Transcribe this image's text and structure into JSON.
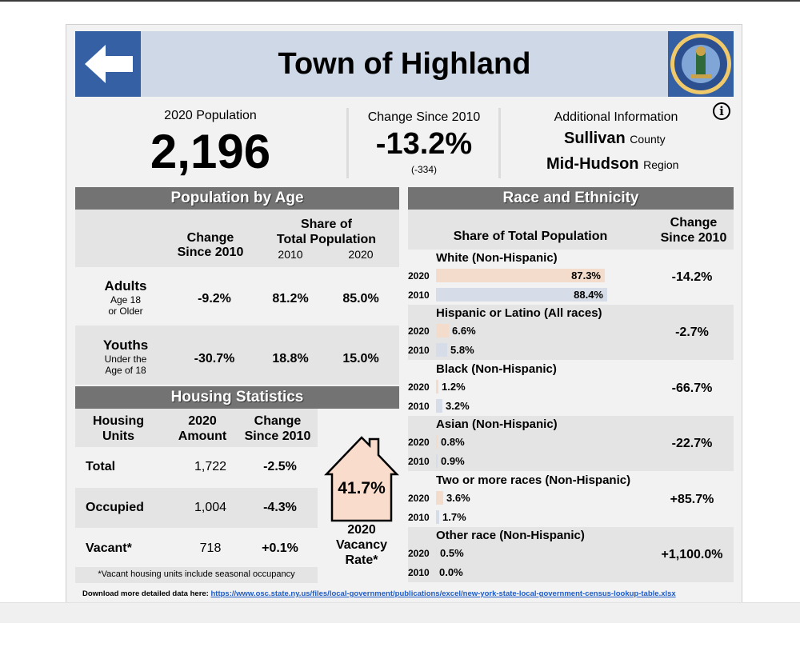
{
  "page": {
    "title": "Town of Highland",
    "back_icon": "left-arrow-icon",
    "seal_icon": "new-york-comptroller-seal"
  },
  "summary": {
    "pop_label": "2020 Population",
    "pop_value": "2,196",
    "change_label": "Change Since 2010",
    "change_value": "-13.2%",
    "change_abs": "(-334)",
    "info_label": "Additional Information",
    "county_name": "Sullivan",
    "county_suffix": "County",
    "region_name": "Mid-Hudson",
    "region_suffix": "Region",
    "info_icon": "info-icon"
  },
  "age": {
    "header": "Population by Age",
    "col_change": [
      "Change",
      "Since 2010"
    ],
    "col_share": [
      "Share of",
      "Total Population"
    ],
    "year_a": "2010",
    "year_b": "2020",
    "rows": [
      {
        "label": "Adults",
        "sub": [
          "Age 18",
          "or Older"
        ],
        "change": "-9.2%",
        "share2010": "81.2%",
        "share2020": "85.0%"
      },
      {
        "label": "Youths",
        "sub": [
          "Under the",
          "Age of 18"
        ],
        "change": "-30.7%",
        "share2010": "18.8%",
        "share2020": "15.0%"
      }
    ]
  },
  "housing": {
    "header": "Housing Statistics",
    "col_units": [
      "Housing",
      "Units"
    ],
    "col_amount": [
      "2020",
      "Amount"
    ],
    "col_change": [
      "Change",
      "Since 2010"
    ],
    "rows": [
      {
        "label": "Total",
        "amount": "1,722",
        "change": "-2.5%"
      },
      {
        "label": "Occupied",
        "amount": "1,004",
        "change": "-4.3%"
      },
      {
        "label": "Vacant*",
        "amount": "718",
        "change": "+0.1%"
      }
    ],
    "vacancy_rate": "41.7%",
    "vacancy_label": [
      "2020",
      "Vacancy",
      "Rate*"
    ],
    "footnote": "*Vacant housing units include seasonal occupancy",
    "house_icon": "house-icon"
  },
  "race": {
    "header": "Race and Ethnicity",
    "col_share": "Share of Total Population",
    "col_change": [
      "Change",
      "Since 2010"
    ],
    "colors": {
      "bar2020": "#f4dccc",
      "bar2010": "#d6dce8"
    },
    "groups": [
      {
        "name": "White (Non-Hispanic)",
        "y2020": "2020",
        "v2020": "87.3%",
        "f2020": 0.873,
        "y2010": "2010",
        "v2010": "88.4%",
        "f2010": 0.884,
        "change": "-14.2%"
      },
      {
        "name": "Hispanic or Latino (All races)",
        "y2020": "2020",
        "v2020": "6.6%",
        "f2020": 0.066,
        "y2010": "2010",
        "v2010": "5.8%",
        "f2010": 0.058,
        "change": "-2.7%"
      },
      {
        "name": "Black (Non-Hispanic)",
        "y2020": "2020",
        "v2020": "1.2%",
        "f2020": 0.012,
        "y2010": "2010",
        "v2010": "3.2%",
        "f2010": 0.032,
        "change": "-66.7%"
      },
      {
        "name": "Asian (Non-Hispanic)",
        "y2020": "2020",
        "v2020": "0.8%",
        "f2020": 0.008,
        "y2010": "2010",
        "v2010": "0.9%",
        "f2010": 0.009,
        "change": "-22.7%"
      },
      {
        "name": "Two or more races (Non-Hispanic)",
        "y2020": "2020",
        "v2020": "3.6%",
        "f2020": 0.036,
        "y2010": "2010",
        "v2010": "1.7%",
        "f2010": 0.017,
        "change": "+85.7%"
      },
      {
        "name": "Other race (Non-Hispanic)",
        "y2020": "2020",
        "v2020": "0.5%",
        "f2020": 0.005,
        "y2010": "2010",
        "v2010": "0.0%",
        "f2010": 0.0,
        "change": "+1,100.0%"
      }
    ]
  },
  "footer": {
    "label": "Download more detailed data here:",
    "url": "https://www.osc.state.ny.us/files/local-government/publications/excel/new-york-state-local-government-census-lookup-table.xlsx"
  }
}
